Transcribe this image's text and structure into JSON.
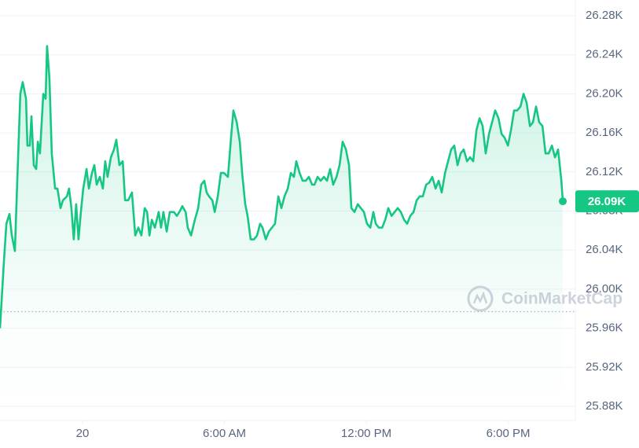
{
  "chart_data": {
    "type": "line",
    "color": "#16c784",
    "x": [
      -3.49,
      -3.32,
      -3.22,
      -3.09,
      -2.99,
      -2.86,
      -2.76,
      -2.63,
      -2.53,
      -2.39,
      -2.33,
      -2.23,
      -2.16,
      -2.06,
      -1.96,
      -1.89,
      -1.8,
      -1.66,
      -1.56,
      -1.5,
      -1.4,
      -1.3,
      -1.16,
      -1.06,
      -0.93,
      -0.83,
      -0.66,
      -0.57,
      -0.47,
      -0.37,
      -0.27,
      -0.17,
      -0.07,
      0.03,
      0.17,
      0.27,
      0.4,
      0.5,
      0.6,
      0.73,
      0.86,
      0.96,
      1.06,
      1.2,
      1.33,
      1.43,
      1.56,
      1.7,
      1.8,
      1.93,
      2.09,
      2.23,
      2.36,
      2.49,
      2.63,
      2.73,
      2.83,
      2.93,
      3.06,
      3.22,
      3.32,
      3.42,
      3.56,
      3.69,
      3.86,
      3.99,
      4.12,
      4.22,
      4.36,
      4.45,
      4.59,
      4.75,
      4.89,
      5.02,
      5.15,
      5.25,
      5.35,
      5.49,
      5.59,
      5.72,
      5.85,
      5.98,
      6.15,
      6.28,
      6.38,
      6.52,
      6.65,
      6.75,
      6.88,
      6.98,
      7.11,
      7.25,
      7.38,
      7.51,
      7.61,
      7.75,
      7.88,
      8.01,
      8.14,
      8.28,
      8.41,
      8.54,
      8.68,
      8.81,
      8.94,
      9.04,
      9.18,
      9.31,
      9.44,
      9.57,
      9.71,
      9.81,
      9.94,
      10.07,
      10.21,
      10.34,
      10.47,
      10.6,
      10.74,
      10.87,
      11.0,
      11.14,
      11.27,
      11.37,
      11.5,
      11.64,
      11.77,
      11.9,
      12.03,
      12.17,
      12.3,
      12.4,
      12.53,
      12.67,
      12.8,
      12.93,
      13.07,
      13.2,
      13.33,
      13.46,
      13.6,
      13.73,
      13.86,
      14.0,
      14.13,
      14.26,
      14.39,
      14.53,
      14.66,
      14.79,
      14.93,
      15.06,
      15.19,
      15.33,
      15.46,
      15.59,
      15.72,
      15.86,
      15.99,
      16.12,
      16.26,
      16.39,
      16.52,
      16.66,
      16.79,
      16.92,
      17.05,
      17.19,
      17.32,
      17.45,
      17.59,
      17.72,
      17.85,
      17.99,
      18.12,
      18.25,
      18.38,
      18.52,
      18.65,
      18.78,
      18.92,
      19.05,
      19.18,
      19.31,
      19.45,
      19.58,
      19.71,
      19.85,
      19.98,
      20.11,
      20.25,
      20.31
    ],
    "values": [
      25.96,
      26.03,
      26.067,
      26.077,
      26.055,
      26.039,
      26.111,
      26.2,
      26.212,
      26.195,
      26.147,
      26.147,
      26.177,
      26.127,
      26.123,
      26.151,
      26.139,
      26.2,
      26.195,
      26.249,
      26.216,
      26.139,
      26.103,
      26.103,
      26.083,
      26.091,
      26.095,
      26.103,
      26.083,
      26.051,
      26.087,
      26.051,
      26.079,
      26.103,
      26.123,
      26.103,
      26.119,
      26.127,
      26.107,
      26.115,
      26.103,
      26.131,
      26.115,
      26.135,
      26.143,
      26.153,
      26.127,
      26.131,
      26.091,
      26.091,
      26.099,
      26.055,
      26.063,
      26.055,
      26.083,
      26.079,
      26.055,
      26.071,
      26.063,
      26.079,
      26.063,
      26.079,
      26.059,
      26.079,
      26.079,
      26.075,
      26.08,
      26.085,
      26.079,
      26.063,
      26.055,
      26.071,
      26.083,
      26.107,
      26.111,
      26.099,
      26.095,
      26.091,
      26.079,
      26.095,
      26.119,
      26.119,
      26.115,
      26.155,
      26.183,
      26.171,
      26.151,
      26.119,
      26.087,
      26.075,
      26.051,
      26.051,
      26.055,
      26.067,
      26.063,
      26.051,
      26.059,
      26.063,
      26.067,
      26.095,
      26.083,
      26.095,
      26.103,
      26.119,
      26.115,
      26.131,
      26.119,
      26.111,
      26.111,
      26.115,
      26.107,
      26.107,
      26.115,
      26.111,
      26.115,
      26.111,
      26.123,
      26.107,
      26.115,
      26.127,
      26.151,
      26.143,
      26.127,
      26.083,
      26.079,
      26.087,
      26.083,
      26.079,
      26.067,
      26.063,
      26.079,
      26.067,
      26.063,
      26.063,
      26.071,
      26.083,
      26.075,
      26.079,
      26.083,
      26.079,
      26.071,
      26.067,
      26.075,
      26.079,
      26.091,
      26.095,
      26.095,
      26.107,
      26.109,
      26.115,
      26.103,
      26.111,
      26.099,
      26.119,
      26.131,
      26.143,
      26.147,
      26.127,
      26.139,
      26.143,
      26.131,
      26.135,
      26.131,
      26.163,
      26.175,
      26.167,
      26.139,
      26.159,
      26.171,
      26.183,
      26.175,
      26.159,
      26.155,
      26.147,
      26.163,
      26.183,
      26.183,
      26.187,
      26.2,
      26.191,
      26.167,
      26.171,
      26.187,
      26.171,
      26.167,
      26.139,
      26.139,
      26.147,
      26.135,
      26.143,
      26.111,
      26.09
    ],
    "last_price_label": "26.09K",
    "baseline": 25.977,
    "xlim": [
      -3.49,
      20.84
    ],
    "xticks": [
      {
        "value": 0,
        "label": "20"
      },
      {
        "value": 6,
        "label": "6:00 AM"
      },
      {
        "value": 12,
        "label": "12:00 PM"
      },
      {
        "value": 18,
        "label": "6:00 PM"
      }
    ],
    "ylim": [
      25.8655,
      26.2961
    ],
    "yticks": [
      {
        "value": 25.88,
        "label": "25.88K"
      },
      {
        "value": 25.92,
        "label": "25.92K"
      },
      {
        "value": 25.96,
        "label": "25.96K"
      },
      {
        "value": 26.0,
        "label": "26.00K"
      },
      {
        "value": 26.04,
        "label": "26.04K"
      },
      {
        "value": 26.08,
        "label": "26.08K"
      },
      {
        "value": 26.12,
        "label": "26.12K"
      },
      {
        "value": 26.16,
        "label": "26.16K"
      },
      {
        "value": 26.2,
        "label": "26.20K"
      },
      {
        "value": 26.24,
        "label": "26.24K"
      },
      {
        "value": 26.28,
        "label": "26.28K"
      }
    ],
    "grid": true,
    "watermark": "CoinMarketCap"
  }
}
